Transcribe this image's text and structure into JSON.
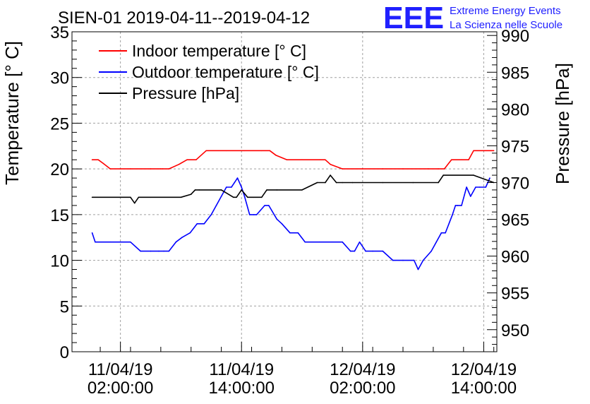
{
  "chart_data": {
    "type": "line",
    "title": "SIEN-01 2019-04-11--2019-04-12",
    "logo_text": "EEE",
    "logo_caption": [
      "Extreme Energy Events",
      "La Scienza nelle Scuole"
    ],
    "ylabel_left": "Temperature [° C]",
    "ylabel_right": "Pressure [hPa]",
    "xlabel": "",
    "x_unit": "hours since 11/04/19 00:00:00",
    "x_range": [
      -2.8,
      39.3
    ],
    "ylim_left": [
      0,
      35
    ],
    "ylim_right": [
      947,
      990.5
    ],
    "grid": true,
    "legend_position": "top-left",
    "x_ticks": [
      {
        "x": 2,
        "date": "11/04/19",
        "time": "02:00:00"
      },
      {
        "x": 14,
        "date": "11/04/19",
        "time": "14:00:00"
      },
      {
        "x": 26,
        "date": "12/04/19",
        "time": "02:00:00"
      },
      {
        "x": 38,
        "date": "12/04/19",
        "time": "14:00:00"
      }
    ],
    "y_ticks_left": [
      "0",
      "5",
      "10",
      "15",
      "20",
      "25",
      "30",
      "35"
    ],
    "y_ticks_right": [
      "950",
      "955",
      "960",
      "965",
      "970",
      "975",
      "980",
      "985",
      "990"
    ],
    "series": [
      {
        "name": "Indoor temperature [° C]",
        "axis": "left",
        "color": "#ff0000",
        "x": [
          -0.8,
          -0.2,
          0.3,
          1,
          3,
          5,
          6,
          6.2,
          6.8,
          7.8,
          8.6,
          9,
          9.5,
          10.5,
          12.5,
          14.3,
          16,
          16.8,
          17.4,
          18.5,
          20,
          21.8,
          22.3,
          22.8,
          24,
          26,
          28,
          30,
          32.5,
          33.5,
          34.1,
          34.8,
          35.8,
          36.5,
          37,
          38,
          39
        ],
        "values": [
          21,
          21,
          20.6,
          20,
          20,
          20,
          20,
          20,
          20,
          20.5,
          21,
          21,
          21,
          22,
          22,
          22,
          22,
          22,
          21.5,
          21,
          21,
          21,
          21,
          20.5,
          20,
          20,
          20,
          20,
          20,
          20,
          20,
          21,
          21,
          21,
          22,
          22,
          22
        ]
      },
      {
        "name": "Outdoor temperature [° C]",
        "axis": "left",
        "color": "#0000ff",
        "x": [
          -0.8,
          -0.5,
          1,
          3,
          4,
          5,
          5.8,
          6.3,
          6.8,
          7.5,
          8.1,
          8.9,
          9.6,
          10.3,
          11,
          11.5,
          12,
          12.5,
          13,
          13.3,
          13.6,
          14,
          14.3,
          14.8,
          15.2,
          15.5,
          16.3,
          16.7,
          17.5,
          18,
          18.8,
          19.6,
          20.3,
          21.7,
          23,
          24,
          24.8,
          25.2,
          25.7,
          26.3,
          27,
          28,
          29,
          30,
          31.1,
          31.5,
          32,
          32.8,
          33.3,
          33.8,
          34.2,
          34.9,
          35.2,
          35.4,
          35.8,
          36.3,
          36.7,
          37.2,
          37.6,
          38.2,
          38.6
        ],
        "values": [
          13,
          12,
          12,
          12,
          11,
          11,
          11,
          11,
          11,
          12,
          12.5,
          13,
          14,
          14,
          15,
          16,
          17,
          18,
          18,
          18.5,
          19,
          18,
          17,
          15,
          15,
          15,
          16,
          16,
          14.5,
          14,
          13,
          13,
          12,
          12,
          12,
          12,
          11,
          11,
          12,
          11,
          11,
          11,
          10,
          10,
          10,
          9,
          10,
          11,
          12,
          13,
          13,
          15,
          16,
          16,
          16,
          18,
          17,
          18,
          18,
          18,
          19
        ]
      },
      {
        "name": "Pressure [hPa]",
        "axis": "right",
        "color": "#000000",
        "x": [
          -0.8,
          2,
          3,
          3.4,
          3.8,
          5,
          8,
          9,
          9.4,
          9.8,
          12,
          13.2,
          13.5,
          14,
          14.6,
          15.2,
          16,
          16.5,
          17.5,
          20,
          21.5,
          22.3,
          22.8,
          23.4,
          24,
          25,
          28,
          31,
          33.5,
          34,
          37,
          39
        ],
        "values": [
          968,
          968,
          968,
          967.2,
          968,
          968,
          968,
          968.4,
          969,
          969,
          969,
          968,
          968,
          969,
          968,
          968,
          968,
          969,
          969,
          969,
          970,
          970,
          971,
          970,
          970,
          970,
          970,
          970,
          970,
          971,
          971,
          970
        ]
      }
    ]
  }
}
